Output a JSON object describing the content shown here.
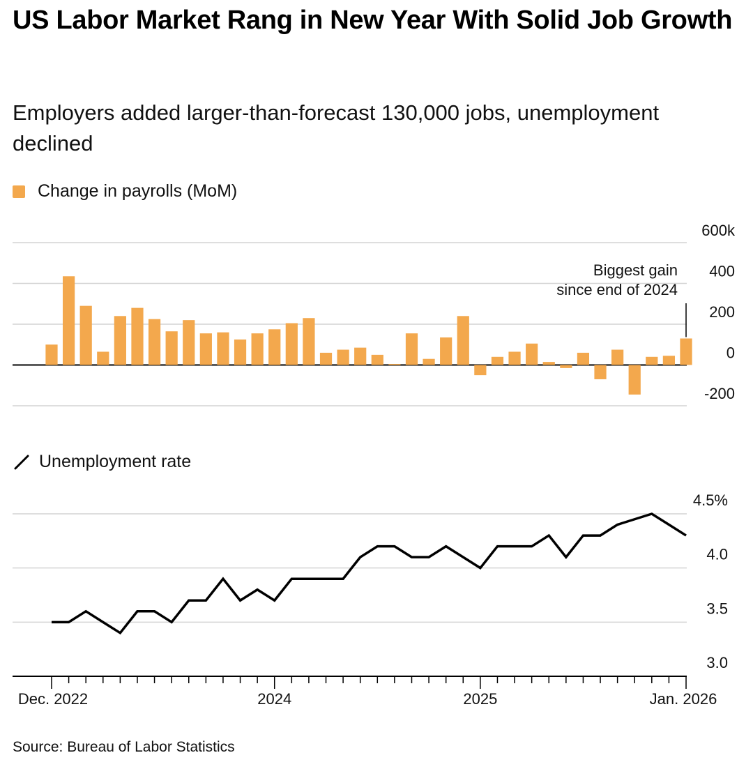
{
  "title": "US Labor Market Rang in New Year With Solid Job Growth",
  "subtitle": "Employers added larger-than-forecast 130,000 jobs, unemployment declined",
  "source": "Source: Bureau of Labor Statistics",
  "colors": {
    "bar": "#f3a84d",
    "line": "#000000",
    "grid": "#d4d4d4"
  },
  "icons": {
    "bar_legend": "square-swatch",
    "line_legend": "diagonal-line-icon"
  },
  "chart_data": [
    {
      "type": "bar",
      "legend": "Change in payrolls (MoM)",
      "x_start": "2022-12",
      "x_end": "2026-01",
      "ylim": [
        -200,
        600
      ],
      "yticks": [
        600,
        400,
        200,
        0,
        -200
      ],
      "ytick_labels": [
        "600k",
        "400",
        "200",
        "0",
        "-200"
      ],
      "annotation": "Biggest gain since end of 2024",
      "annotation_lines": [
        "Biggest gain",
        "since end of 2024"
      ],
      "values": [
        100,
        435,
        290,
        65,
        240,
        280,
        225,
        165,
        220,
        155,
        160,
        125,
        155,
        175,
        205,
        230,
        60,
        75,
        85,
        50,
        5,
        155,
        30,
        135,
        240,
        -50,
        40,
        65,
        105,
        15,
        -15,
        60,
        -70,
        75,
        -145,
        40,
        45,
        130
      ]
    },
    {
      "type": "line",
      "legend": "Unemployment rate",
      "ylim": [
        3.0,
        4.5
      ],
      "yticks": [
        4.5,
        4.0,
        3.5,
        3.0
      ],
      "ytick_labels": [
        "4.5%",
        "4.0",
        "3.5",
        "3.0"
      ],
      "x_tick_labels": [
        {
          "month_index": 0,
          "label": "Dec. 2022"
        },
        {
          "month_index": 13,
          "label": "2024"
        },
        {
          "month_index": 25,
          "label": "2025"
        },
        {
          "month_index": 37,
          "label": "Jan. 2026"
        }
      ],
      "values": [
        3.5,
        3.5,
        3.6,
        3.5,
        3.4,
        3.6,
        3.6,
        3.5,
        3.7,
        3.7,
        3.9,
        3.7,
        3.8,
        3.7,
        3.9,
        3.9,
        3.9,
        3.9,
        4.1,
        4.2,
        4.2,
        4.1,
        4.1,
        4.2,
        4.1,
        4.0,
        4.2,
        4.2,
        4.2,
        4.3,
        4.1,
        4.3,
        4.3,
        4.4,
        4.45,
        4.5,
        4.4,
        4.3
      ]
    }
  ]
}
